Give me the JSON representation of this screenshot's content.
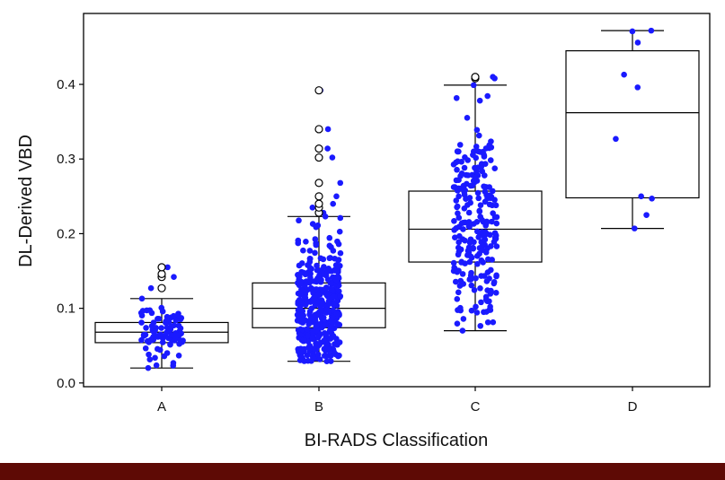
{
  "chart_data": {
    "type": "box",
    "title": "",
    "xlabel": "BI-RADS Classification",
    "ylabel": "DL-Derived VBD",
    "ylim": [
      -0.005,
      0.495
    ],
    "yticks": [
      "0.0",
      "0.1",
      "0.2",
      "0.3",
      "0.4"
    ],
    "ytick_values": [
      0.0,
      0.1,
      0.2,
      0.3,
      0.4
    ],
    "categories": [
      "A",
      "B",
      "C",
      "D"
    ],
    "boxes": [
      {
        "category": "A",
        "whisker_low": 0.02,
        "q1": 0.054,
        "median": 0.068,
        "q3": 0.081,
        "whisker_high": 0.113,
        "outliers": [
          0.127,
          0.142,
          0.146,
          0.155
        ],
        "n_points": 90
      },
      {
        "category": "B",
        "whisker_low": 0.029,
        "q1": 0.074,
        "median": 0.1,
        "q3": 0.134,
        "whisker_high": 0.223,
        "outliers": [
          0.228,
          0.235,
          0.24,
          0.25,
          0.268,
          0.302,
          0.314,
          0.34,
          0.392
        ],
        "n_points": 380
      },
      {
        "category": "C",
        "whisker_low": 0.07,
        "q1": 0.162,
        "median": 0.206,
        "q3": 0.257,
        "whisker_high": 0.399,
        "outliers": [
          0.408,
          0.41
        ],
        "n_points": 240
      },
      {
        "category": "D",
        "whisker_low": 0.207,
        "q1": 0.248,
        "median": 0.362,
        "q3": 0.445,
        "whisker_high": 0.472,
        "outliers": [],
        "points": [
          0.472,
          0.471,
          0.456,
          0.413,
          0.396,
          0.327,
          0.25,
          0.247,
          0.225,
          0.207
        ]
      }
    ],
    "point_color": "#1a1aff",
    "outlier_style": "open circle",
    "grid": false,
    "legend": "none"
  }
}
